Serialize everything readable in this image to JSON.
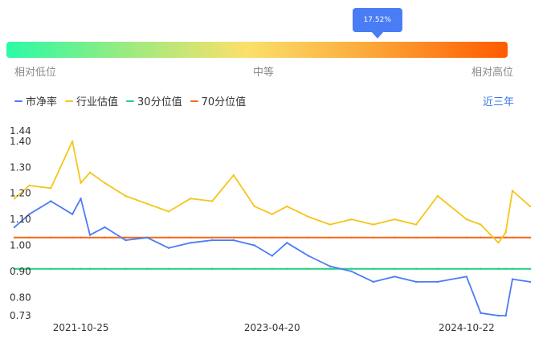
{
  "gauge": {
    "marker_label": "17.52%",
    "marker_position_fraction": 0.74,
    "labels": {
      "low": "相对低位",
      "mid": "中等",
      "high": "相对高位"
    }
  },
  "legend": [
    {
      "label": "市净率",
      "color": "#4a7cf6"
    },
    {
      "label": "行业估值",
      "color": "#f5c518"
    },
    {
      "label": "30分位值",
      "color": "#22d07e"
    },
    {
      "label": "70分位值",
      "color": "#f26a1b"
    }
  ],
  "range_button": "近三年",
  "chart_data": {
    "type": "line",
    "x": [
      "2021-04-20",
      "2021-06-01",
      "2021-08-01",
      "2021-10-01",
      "2021-10-25",
      "2021-11-20",
      "2022-01-01",
      "2022-03-01",
      "2022-05-01",
      "2022-07-01",
      "2022-09-01",
      "2022-11-01",
      "2023-01-01",
      "2023-03-01",
      "2023-04-20",
      "2023-06-01",
      "2023-08-01",
      "2023-10-01",
      "2023-12-01",
      "2024-02-01",
      "2024-04-01",
      "2024-06-01",
      "2024-08-01",
      "2024-10-22",
      "2024-12-01",
      "2025-01-20",
      "2025-02-10",
      "2025-03-01",
      "2025-04-20"
    ],
    "series": [
      {
        "name": "市净率",
        "color": "#4a7cf6",
        "values": [
          1.07,
          1.12,
          1.17,
          1.12,
          1.18,
          1.04,
          1.07,
          1.02,
          1.03,
          0.99,
          1.01,
          1.02,
          1.02,
          1.0,
          0.96,
          1.01,
          0.96,
          0.92,
          0.9,
          0.86,
          0.88,
          0.86,
          0.86,
          0.88,
          0.74,
          0.73,
          0.73,
          0.87,
          0.86
        ]
      },
      {
        "name": "行业估值",
        "color": "#f5c518",
        "values": [
          1.18,
          1.23,
          1.22,
          1.4,
          1.24,
          1.28,
          1.24,
          1.19,
          1.16,
          1.13,
          1.18,
          1.17,
          1.27,
          1.15,
          1.12,
          1.15,
          1.11,
          1.08,
          1.1,
          1.08,
          1.1,
          1.08,
          1.19,
          1.1,
          1.08,
          1.01,
          1.05,
          1.21,
          1.15
        ]
      },
      {
        "name": "30分位值",
        "color": "#22d07e",
        "values": [
          0.91,
          0.91,
          0.91,
          0.91,
          0.91,
          0.91,
          0.91,
          0.91,
          0.91,
          0.91,
          0.91,
          0.91,
          0.91,
          0.91,
          0.91,
          0.91,
          0.91,
          0.91,
          0.91,
          0.91,
          0.91,
          0.91,
          0.91,
          0.91,
          0.91,
          0.91,
          0.91,
          0.91,
          0.91
        ]
      },
      {
        "name": "70分位值",
        "color": "#f26a1b",
        "values": [
          1.03,
          1.03,
          1.03,
          1.03,
          1.03,
          1.03,
          1.03,
          1.03,
          1.03,
          1.03,
          1.03,
          1.03,
          1.03,
          1.03,
          1.03,
          1.03,
          1.03,
          1.03,
          1.03,
          1.03,
          1.03,
          1.03,
          1.03,
          1.03,
          1.03,
          1.03,
          1.03,
          1.03,
          1.03
        ]
      }
    ],
    "y_ticks": [
      "1.44",
      "1.40",
      "1.30",
      "1.20",
      "1.10",
      "1.00",
      "0.90",
      "0.80",
      "0.73"
    ],
    "x_ticks": [
      "2021-10-25",
      "2023-04-20",
      "2024-10-22"
    ],
    "ylim": [
      0.73,
      1.44
    ],
    "grid": false,
    "title": "",
    "xlabel": "",
    "ylabel": ""
  }
}
